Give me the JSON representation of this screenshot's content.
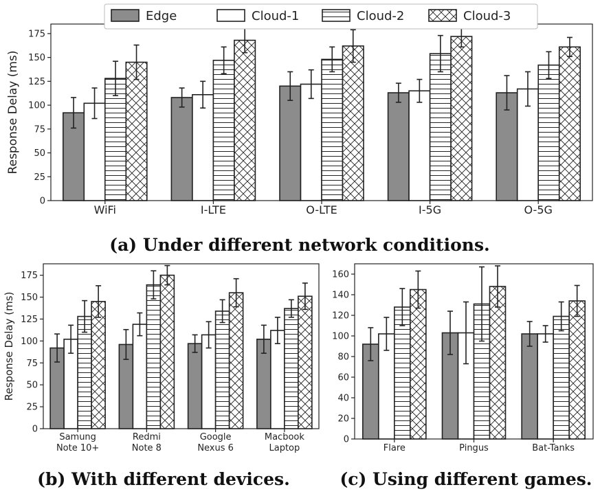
{
  "colors": {
    "edge_fill": "#8c8c8c",
    "bar_fill": "#ffffff",
    "bar_stroke": "#222222",
    "axis": "#222222"
  },
  "legend": {
    "entries": [
      "Edge",
      "Cloud-1",
      "Cloud-2",
      "Cloud-3"
    ],
    "patterns": [
      "solid-gray",
      "plain",
      "horizontal-lines",
      "crosshatch"
    ],
    "placement": "top-center"
  },
  "chart_data": [
    {
      "id": "a",
      "type": "bar",
      "caption": "(a) Under different network conditions.",
      "ylabel": "Response Delay (ms)",
      "ylim": [
        0,
        185
      ],
      "yticks": [
        0,
        25,
        50,
        75,
        100,
        125,
        150,
        175
      ],
      "categories": [
        "WiFi",
        "I-LTE",
        "O-LTE",
        "I-5G",
        "O-5G"
      ],
      "series": [
        {
          "name": "Edge",
          "values": [
            92,
            108,
            120,
            113,
            113
          ],
          "err": [
            16,
            10,
            15,
            10,
            18
          ]
        },
        {
          "name": "Cloud-1",
          "values": [
            102,
            111,
            122,
            115,
            117
          ],
          "err": [
            16,
            14,
            15,
            12,
            18
          ]
        },
        {
          "name": "Cloud-2",
          "values": [
            128,
            147,
            148,
            154,
            142
          ],
          "err": [
            18,
            14,
            13,
            19,
            14
          ]
        },
        {
          "name": "Cloud-3",
          "values": [
            145,
            168,
            162,
            172,
            161
          ],
          "err": [
            18,
            13,
            17,
            11,
            10
          ]
        }
      ]
    },
    {
      "id": "b",
      "type": "bar",
      "caption": "(b) With different devices.",
      "ylabel": "Response Delay (ms)",
      "ylim": [
        0,
        188
      ],
      "yticks": [
        0,
        25,
        50,
        75,
        100,
        125,
        150,
        175
      ],
      "categories": [
        [
          "Samung",
          "Note 10+"
        ],
        [
          "Redmi",
          "Note 8"
        ],
        [
          "Google",
          "Nexus 6"
        ],
        [
          "Macbook",
          "Laptop"
        ]
      ],
      "series": [
        {
          "name": "Edge",
          "values": [
            92,
            96,
            97,
            102
          ],
          "err": [
            16,
            17,
            10,
            16
          ]
        },
        {
          "name": "Cloud-1",
          "values": [
            102,
            119,
            107,
            112
          ],
          "err": [
            16,
            13,
            15,
            15
          ]
        },
        {
          "name": "Cloud-2",
          "values": [
            128,
            164,
            134,
            137
          ],
          "err": [
            18,
            16,
            13,
            10
          ]
        },
        {
          "name": "Cloud-3",
          "values": [
            145,
            175,
            155,
            151
          ],
          "err": [
            18,
            11,
            16,
            15
          ]
        }
      ]
    },
    {
      "id": "c",
      "type": "bar",
      "caption": "(c) Using different games.",
      "ylabel": "",
      "ylim": [
        0,
        170
      ],
      "yticks": [
        0,
        20,
        40,
        60,
        80,
        100,
        120,
        140,
        160
      ],
      "categories": [
        "Flare",
        "Pingus",
        "Bat-Tanks"
      ],
      "series": [
        {
          "name": "Edge",
          "values": [
            92,
            103,
            102
          ],
          "err": [
            16,
            21,
            12
          ]
        },
        {
          "name": "Cloud-1",
          "values": [
            102,
            103,
            102
          ],
          "err": [
            16,
            30,
            8
          ]
        },
        {
          "name": "Cloud-2",
          "values": [
            128,
            131,
            119
          ],
          "err": [
            18,
            36,
            14
          ]
        },
        {
          "name": "Cloud-3",
          "values": [
            145,
            148,
            134
          ],
          "err": [
            18,
            20,
            15
          ]
        }
      ]
    }
  ]
}
